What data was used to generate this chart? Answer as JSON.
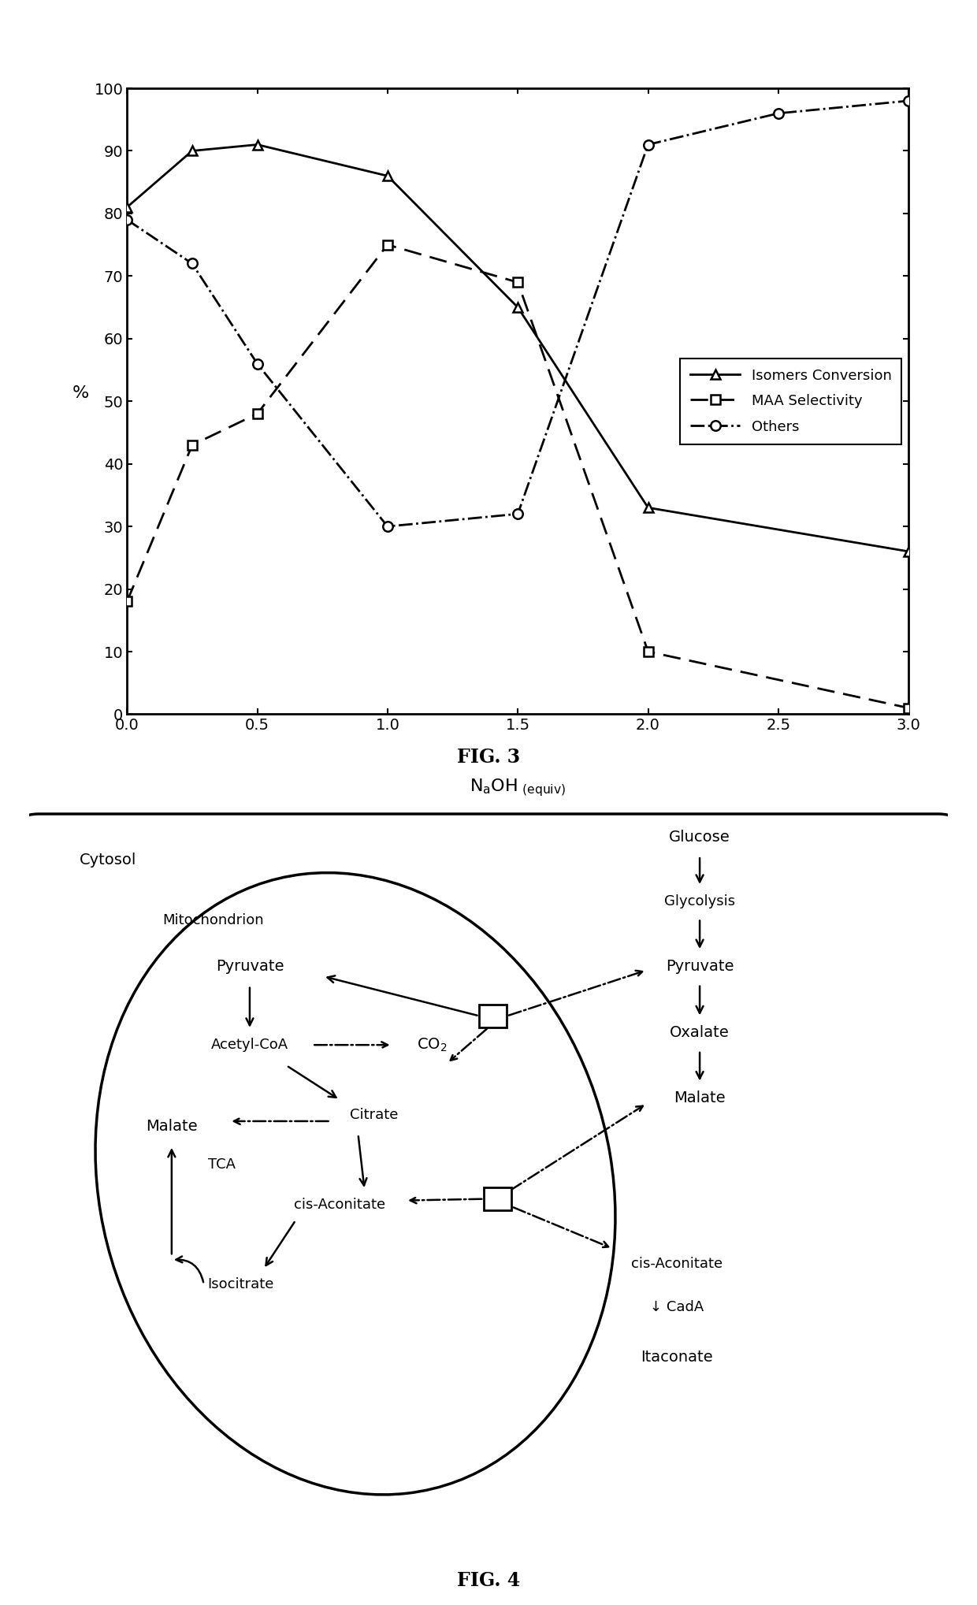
{
  "fig3": {
    "isomers_conversion": {
      "x": [
        0.0,
        0.25,
        0.5,
        1.0,
        1.5,
        2.0,
        3.0
      ],
      "y": [
        81,
        90,
        91,
        86,
        65,
        33,
        26
      ]
    },
    "maa_selectivity": {
      "x": [
        0.0,
        0.25,
        0.5,
        1.0,
        1.5,
        2.0,
        3.0
      ],
      "y": [
        18,
        43,
        48,
        75,
        69,
        10,
        1
      ]
    },
    "others": {
      "x": [
        0.0,
        0.25,
        0.5,
        1.0,
        1.5,
        2.0,
        2.5,
        3.0
      ],
      "y": [
        79,
        72,
        56,
        30,
        32,
        91,
        96,
        98
      ]
    },
    "xlim": [
      0.0,
      3.0
    ],
    "ylim": [
      0,
      100
    ],
    "xticks": [
      0.0,
      0.5,
      1.0,
      1.5,
      2.0,
      2.5,
      3.0
    ],
    "yticks": [
      0,
      10,
      20,
      30,
      40,
      50,
      60,
      70,
      80,
      90,
      100
    ],
    "fig_label": "FIG. 3"
  },
  "fig4": {
    "fig_label": "FIG. 4"
  }
}
